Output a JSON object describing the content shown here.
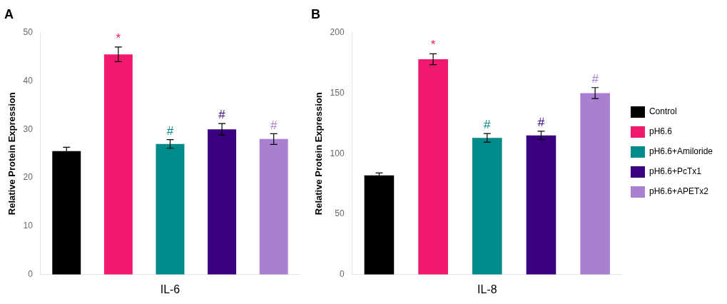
{
  "chart_data": [
    {
      "type": "bar",
      "title": "A",
      "xlabel": "IL-6",
      "ylabel": "Relative Protein Expression",
      "categories": [
        "Control",
        "pH6.6",
        "pH6.6+Amiloride",
        "pH6.6+PcTx1",
        "pH6.6+APETx2"
      ],
      "values": [
        25.5,
        45.5,
        27.0,
        30.0,
        28.0
      ],
      "errors": [
        0.8,
        1.5,
        0.9,
        1.2,
        1.1
      ],
      "significance": [
        null,
        "*",
        "#",
        "#",
        "#"
      ],
      "colors": [
        "#000000",
        "#F0196E",
        "#008B8B",
        "#3B0080",
        "#A97FD0"
      ],
      "ylim": [
        0,
        50
      ],
      "yticks": [
        0,
        10,
        20,
        30,
        40,
        50
      ],
      "grid": false,
      "tick_labels": "y"
    },
    {
      "type": "bar",
      "title": "B",
      "xlabel": "IL-8",
      "ylabel": "Relative Protein Expression",
      "categories": [
        "Control",
        "pH6.6",
        "pH6.6+Amiloride",
        "pH6.6+PcTx1",
        "pH6.6+APETx2"
      ],
      "values": [
        82.0,
        178.0,
        113.0,
        115.0,
        150.0
      ],
      "errors": [
        2.0,
        4.5,
        3.5,
        3.5,
        4.5
      ],
      "significance": [
        null,
        "*",
        "#",
        "#",
        "#"
      ],
      "colors": [
        "#000000",
        "#F0196E",
        "#008B8B",
        "#3B0080",
        "#A97FD0"
      ],
      "ylim": [
        0,
        200
      ],
      "yticks": [
        0,
        50,
        100,
        150,
        200
      ],
      "grid": false,
      "tick_labels": "y",
      "legend": "right"
    }
  ]
}
